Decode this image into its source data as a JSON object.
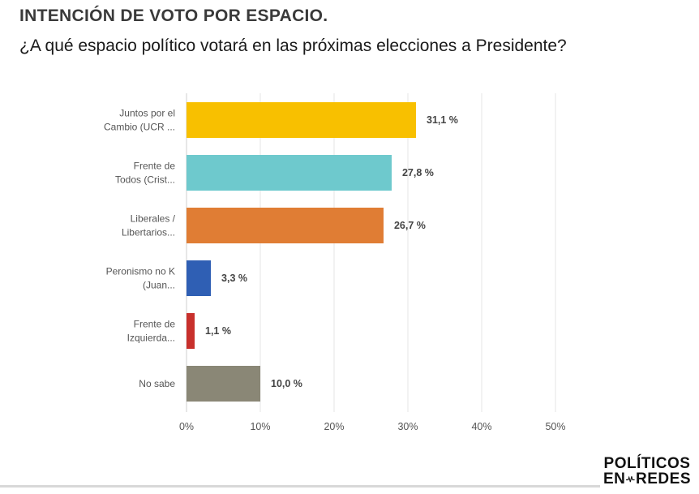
{
  "header": {
    "title": "INTENCIÓN DE VOTO POR ESPACIO.",
    "subtitle": "¿A qué espacio político votará en las próximas elecciones a Presidente?"
  },
  "chart_data": {
    "type": "bar",
    "orientation": "horizontal",
    "categories": [
      [
        "Juntos por el",
        "Cambio (UCR ..."
      ],
      [
        "Frente de",
        "Todos (Crist..."
      ],
      [
        "Liberales /",
        "Libertarios..."
      ],
      [
        "Peronismo no K",
        "(Juan..."
      ],
      [
        "Frente de",
        "Izquierda..."
      ],
      [
        "No sabe"
      ]
    ],
    "values": [
      31.1,
      27.8,
      26.7,
      3.3,
      1.1,
      10.0
    ],
    "value_labels": [
      "31,1 %",
      "27,8 %",
      "26,7 %",
      "3,3 %",
      "1,1 %",
      "10,0 %"
    ],
    "colors": [
      "#f8c000",
      "#6ec9cd",
      "#e07d34",
      "#2f5fb4",
      "#c8302c",
      "#8a8776"
    ],
    "xlim": [
      0,
      50
    ],
    "ticks": [
      0,
      10,
      20,
      30,
      40,
      50
    ],
    "tick_labels": [
      "0%",
      "10%",
      "20%",
      "30%",
      "40%",
      "50%"
    ],
    "grid": true,
    "xlabel": "",
    "ylabel": ""
  },
  "logo": {
    "line1": "POLÍTICOS",
    "line2_left": "EN",
    "line2_right": "REDES"
  }
}
